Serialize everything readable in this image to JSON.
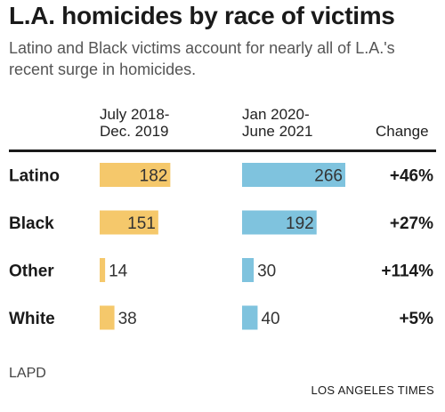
{
  "header": {
    "title": "L.A. homicides by race of victims",
    "subtitle": "Latino and Black victims account for nearly all of L.A.'s recent surge in homicides."
  },
  "columns": {
    "period_a": "July 2018-\nDec. 2019",
    "period_b": "Jan 2020-\nJune 2021",
    "change": "Change"
  },
  "footer": {
    "source": "LAPD",
    "credit": "LOS ANGELES TIMES"
  },
  "colors": {
    "period_a": "#f5c86b",
    "period_b": "#7fc3de",
    "rule": "#1a1a1a"
  },
  "chart_data": {
    "type": "bar",
    "categories": [
      "Latino",
      "Black",
      "Other",
      "White"
    ],
    "series": [
      {
        "name": "July 2018-Dec. 2019",
        "values": [
          182,
          151,
          14,
          38
        ]
      },
      {
        "name": "Jan 2020-June 2021",
        "values": [
          266,
          192,
          30,
          40
        ]
      }
    ],
    "change": [
      "+46%",
      "+27%",
      "+114%",
      "+5%"
    ],
    "xlim": [
      0,
      266
    ],
    "grid": false
  }
}
